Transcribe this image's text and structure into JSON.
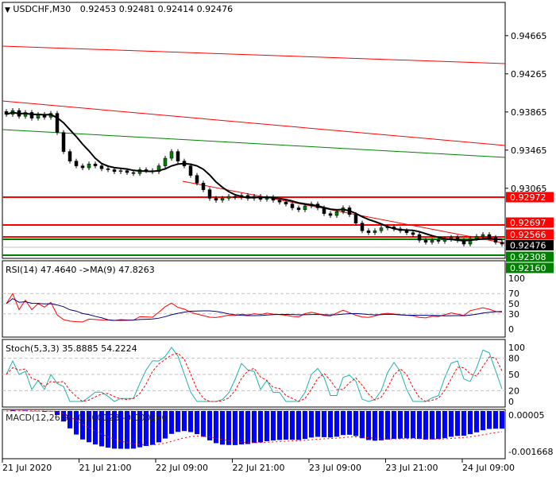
{
  "header": {
    "symbol": "USDCHF,M30",
    "ohlc": "0.92453 0.92481 0.92414 0.92476"
  },
  "indicators": {
    "rsi": "RSI(14) 47.4640  ->MA(9) 47.8263",
    "stoch": "Stoch(5,3,3) 35.8885 54.2224",
    "macd": "MACD(12,26,9) -0.000128 -0.000246"
  },
  "colors": {
    "bull": "#008000",
    "bear": "#000000",
    "resistance": "#ff0000",
    "support": "#008000",
    "ma": "#000000",
    "rsi": "#ff0000",
    "rsi_ma": "#000080",
    "stoch_main": "#20b2aa",
    "stoch_signal": "#ff0000",
    "macd_hist": "#0000ff",
    "macd_signal": "#ff0000"
  },
  "chart_data": {
    "type": "candlestick",
    "price_ticks": [
      "0.94665",
      "0.94265",
      "0.93865",
      "0.93465",
      "0.93065"
    ],
    "current_price": "0.92476",
    "levels": [
      {
        "value": "0.92972",
        "kind": "resistance"
      },
      {
        "value": "0.92697",
        "kind": "resistance"
      },
      {
        "value": "0.92566",
        "kind": "resistance"
      },
      {
        "value": "0.92308",
        "kind": "support"
      },
      {
        "value": "0.92160",
        "kind": "support"
      }
    ],
    "time_labels": [
      "21 Jul 2020",
      "21 Jul 21:00",
      "22 Jul 09:00",
      "22 Jul 21:00",
      "23 Jul 09:00",
      "23 Jul 21:00",
      "24 Jul 09:00"
    ],
    "closes": [
      0.9384,
      0.9388,
      0.9382,
      0.9386,
      0.938,
      0.9384,
      0.9381,
      0.9385,
      0.9365,
      0.9345,
      0.9335,
      0.933,
      0.9328,
      0.9332,
      0.933,
      0.9327,
      0.9326,
      0.9324,
      0.9325,
      0.9323,
      0.9322,
      0.9326,
      0.9325,
      0.9324,
      0.933,
      0.9338,
      0.9345,
      0.9335,
      0.933,
      0.932,
      0.9312,
      0.9305,
      0.9296,
      0.9294,
      0.9296,
      0.9298,
      0.9297,
      0.9299,
      0.9296,
      0.9298,
      0.9295,
      0.9297,
      0.9294,
      0.9292,
      0.929,
      0.9286,
      0.9284,
      0.9288,
      0.929,
      0.9286,
      0.928,
      0.9278,
      0.9282,
      0.9286,
      0.9279,
      0.927,
      0.9262,
      0.926,
      0.9262,
      0.9265,
      0.9266,
      0.9264,
      0.9262,
      0.926,
      0.9258,
      0.9252,
      0.925,
      0.9252,
      0.9251,
      0.9253,
      0.9255,
      0.9252,
      0.9248,
      0.9254,
      0.9256,
      0.9258,
      0.9255,
      0.925,
      0.9248
    ],
    "rsi_ticks": [
      "100",
      "70",
      "50",
      "30",
      "0"
    ],
    "stoch_ticks": [
      "100",
      "80",
      "50",
      "20",
      "0"
    ],
    "macd_ticks": [
      "0.00005",
      "-0.001668"
    ]
  }
}
